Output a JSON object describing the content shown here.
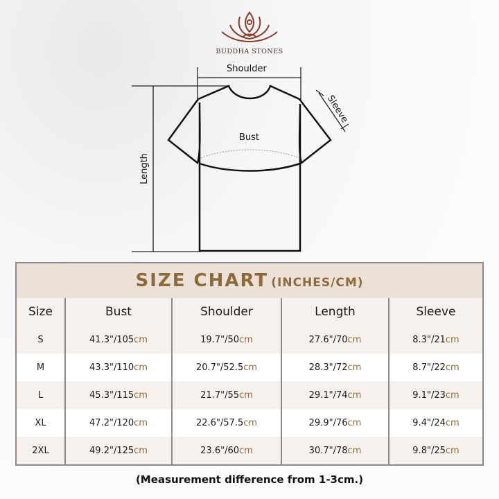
{
  "brand": {
    "name": "BUDDHA STONES",
    "colors": {
      "logo": "#8b3a2b",
      "accent": "#8d6a3c",
      "header_bg": "#ece1d7"
    }
  },
  "diagram": {
    "shoulder": "Shoulder",
    "sleeve": "Sleeve",
    "bust": "Bust",
    "length": "Length"
  },
  "table": {
    "title": "SIZE CHART",
    "units": "(INCHES/CM)",
    "headers": [
      "Size",
      "Bust",
      "Shoulder",
      "Length",
      "Sleeve"
    ],
    "unit": "cm",
    "rows": [
      [
        "S",
        "41.3\"/105",
        "19.7\"/50",
        "27.6\"/70",
        "8.3\"/21"
      ],
      [
        "M",
        "43.3\"/110",
        "20.7\"/52.5",
        "28.3\"/72",
        "8.7\"/22"
      ],
      [
        "L",
        "45.3\"/115",
        "21.7\"/55",
        "29.1\"/74",
        "9.1\"/23"
      ],
      [
        "XL",
        "47.2\"/120",
        "22.6\"/57.5",
        "29.9\"/76",
        "9.4\"/24"
      ],
      [
        "2XL",
        "49.2\"/125",
        "23.6\"/60",
        "30.7\"/78",
        "9.8\"/25"
      ]
    ]
  },
  "note": "(Measurement difference from 1-3cm.)"
}
